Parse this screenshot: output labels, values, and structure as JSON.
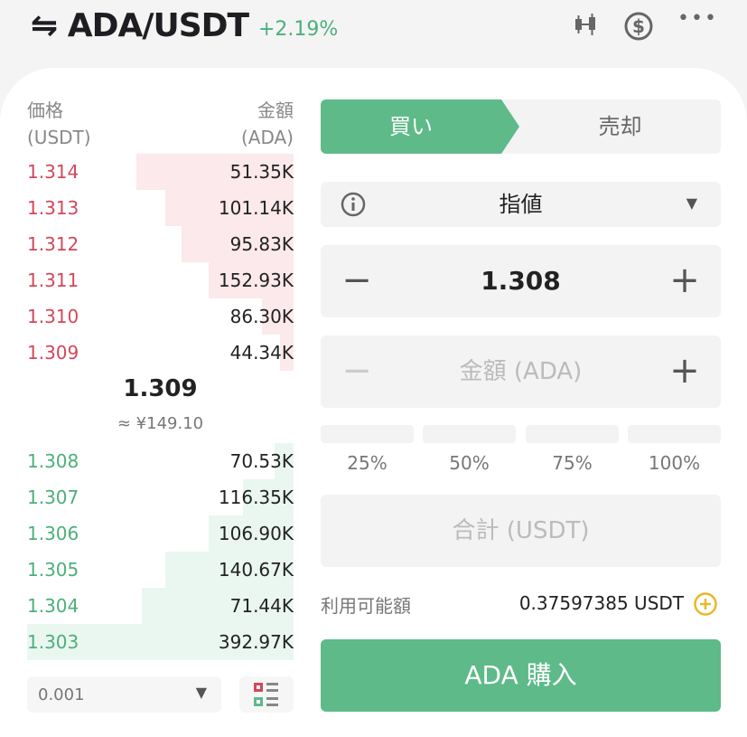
{
  "header": {
    "pair_icon": "swap-arrows-icon",
    "pair": "ADA/USDT",
    "change": "+2.19%",
    "icons": [
      "candlestick-chart-icon",
      "dollar-circle-icon",
      "more-dots-icon"
    ]
  },
  "orderbook": {
    "price_header": "価格",
    "price_unit": "(USDT)",
    "amount_header": "金額",
    "amount_unit": "(ADA)",
    "asks": [
      {
        "price": "1.314",
        "amount": "51.35K",
        "depth": 0.59
      },
      {
        "price": "1.313",
        "amount": "101.14K",
        "depth": 0.48
      },
      {
        "price": "1.312",
        "amount": "95.83K",
        "depth": 0.42
      },
      {
        "price": "1.311",
        "amount": "152.93K",
        "depth": 0.32
      },
      {
        "price": "1.310",
        "amount": "86.30K",
        "depth": 0.12
      },
      {
        "price": "1.309",
        "amount": "44.34K",
        "depth": 0.05
      }
    ],
    "last_price": "1.309",
    "last_price_jpy": "≈ ¥149.10",
    "bids": [
      {
        "price": "1.308",
        "amount": "70.53K",
        "depth": 0.07
      },
      {
        "price": "1.307",
        "amount": "116.35K",
        "depth": 0.19
      },
      {
        "price": "1.306",
        "amount": "106.90K",
        "depth": 0.32
      },
      {
        "price": "1.305",
        "amount": "140.67K",
        "depth": 0.48
      },
      {
        "price": "1.304",
        "amount": "71.44K",
        "depth": 0.57
      },
      {
        "price": "1.303",
        "amount": "392.97K",
        "depth": 1.0
      }
    ],
    "precision": "0.001"
  },
  "form": {
    "buy_tab": "買い",
    "sell_tab": "売却",
    "order_type": "指値",
    "price": "1.308",
    "amount_placeholder": "金額 (ADA)",
    "percents": [
      "25%",
      "50%",
      "75%",
      "100%"
    ],
    "total_placeholder": "合計 (USDT)",
    "available_label": "利用可能額",
    "available_value": "0.37597385 USDT",
    "submit": "ADA 購入"
  },
  "colors": {
    "green": "#5eba89",
    "red": "#d2485a",
    "accent_yellow": "#e8b828"
  }
}
